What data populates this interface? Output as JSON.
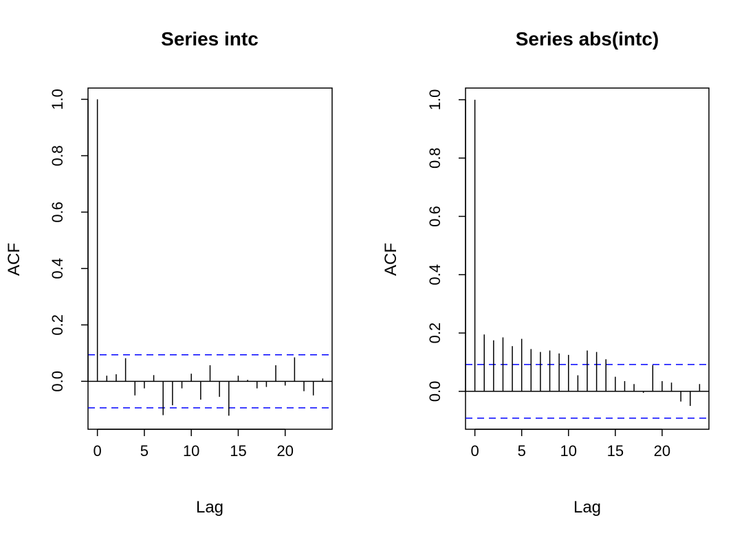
{
  "chart_data": [
    {
      "type": "bar",
      "title": "Series  intc",
      "xlabel": "Lag",
      "ylabel": "ACF",
      "xlim": [
        -1,
        25
      ],
      "ylim": [
        -0.17,
        1.04
      ],
      "xticks": [
        0,
        5,
        10,
        15,
        20
      ],
      "yticks": [
        0.0,
        0.2,
        0.4,
        0.6,
        0.8,
        1.0
      ],
      "ci": 0.094,
      "ci_color": "#0000ff",
      "x": [
        0,
        1,
        2,
        3,
        4,
        5,
        6,
        7,
        8,
        9,
        10,
        11,
        12,
        13,
        14,
        15,
        16,
        17,
        18,
        19,
        20,
        21,
        22,
        23,
        24
      ],
      "values": [
        1.0,
        0.02,
        0.025,
        0.082,
        -0.05,
        -0.025,
        0.022,
        -0.12,
        -0.085,
        -0.025,
        0.027,
        -0.065,
        0.057,
        -0.055,
        -0.122,
        0.02,
        0.005,
        -0.025,
        -0.02,
        0.057,
        -0.015,
        0.085,
        -0.035,
        -0.05,
        0.01
      ]
    },
    {
      "type": "bar",
      "title": "Series  abs(intc)",
      "xlabel": "Lag",
      "ylabel": "ACF",
      "xlim": [
        -1,
        25
      ],
      "ylim": [
        -0.13,
        1.04
      ],
      "xticks": [
        0,
        5,
        10,
        15,
        20
      ],
      "yticks": [
        0.0,
        0.2,
        0.4,
        0.6,
        0.8,
        1.0
      ],
      "ci": 0.092,
      "ci_color": "#0000ff",
      "x": [
        0,
        1,
        2,
        3,
        4,
        5,
        6,
        7,
        8,
        9,
        10,
        11,
        12,
        13,
        14,
        15,
        16,
        17,
        18,
        19,
        20,
        21,
        22,
        23,
        24
      ],
      "values": [
        1.0,
        0.195,
        0.175,
        0.185,
        0.155,
        0.18,
        0.145,
        0.135,
        0.14,
        0.13,
        0.125,
        0.055,
        0.14,
        0.135,
        0.11,
        0.05,
        0.035,
        0.025,
        -0.005,
        0.09,
        0.035,
        0.03,
        -0.035,
        -0.05,
        0.025
      ]
    }
  ]
}
